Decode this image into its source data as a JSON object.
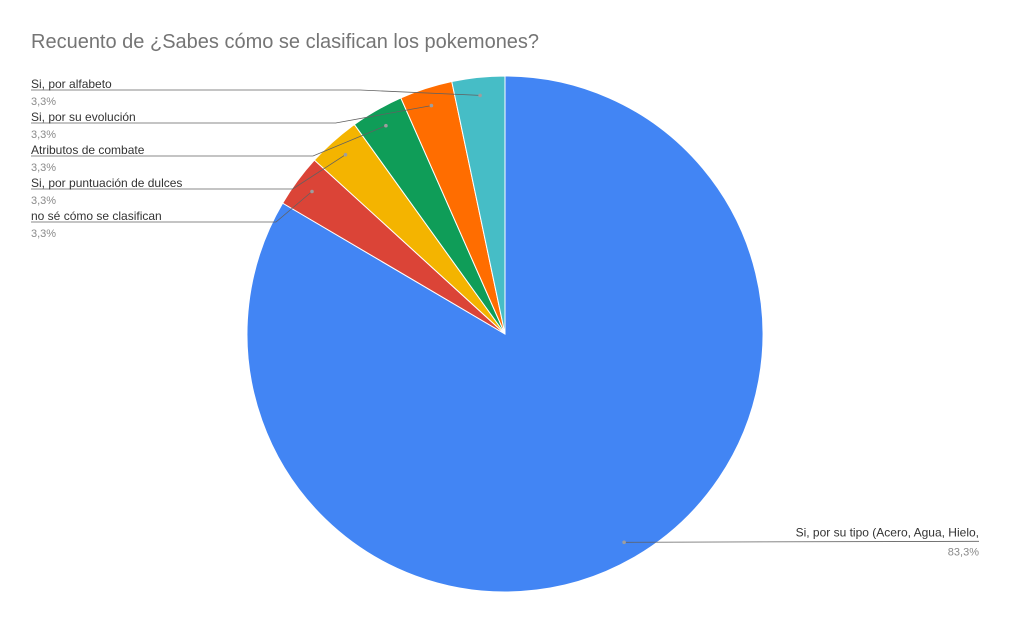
{
  "chart_data": {
    "type": "pie",
    "title": "Recuento de ¿Sabes cómo se clasifican los pokemones?",
    "slices": [
      {
        "label": "Si, por su tipo (Acero, Agua, Hielo,",
        "value": 83.3,
        "value_label": "83,3%",
        "color": "#4285F4"
      },
      {
        "label": "no sé cómo se clasifican",
        "value": 3.3,
        "value_label": "3,3%",
        "color": "#DB4437"
      },
      {
        "label": "Si, por puntuación de dulces",
        "value": 3.3,
        "value_label": "3,3%",
        "color": "#F4B400"
      },
      {
        "label": "Atributos de combate",
        "value": 3.3,
        "value_label": "3,3%",
        "color": "#0F9D58"
      },
      {
        "label": "Si, por su evolución",
        "value": 3.3,
        "value_label": "3,3%",
        "color": "#FF6D00"
      },
      {
        "label": "Si, por alfabeto",
        "value": 3.3,
        "value_label": "3,3%",
        "color": "#46BDC6"
      }
    ],
    "start_direction": "top",
    "order": "clockwise"
  }
}
